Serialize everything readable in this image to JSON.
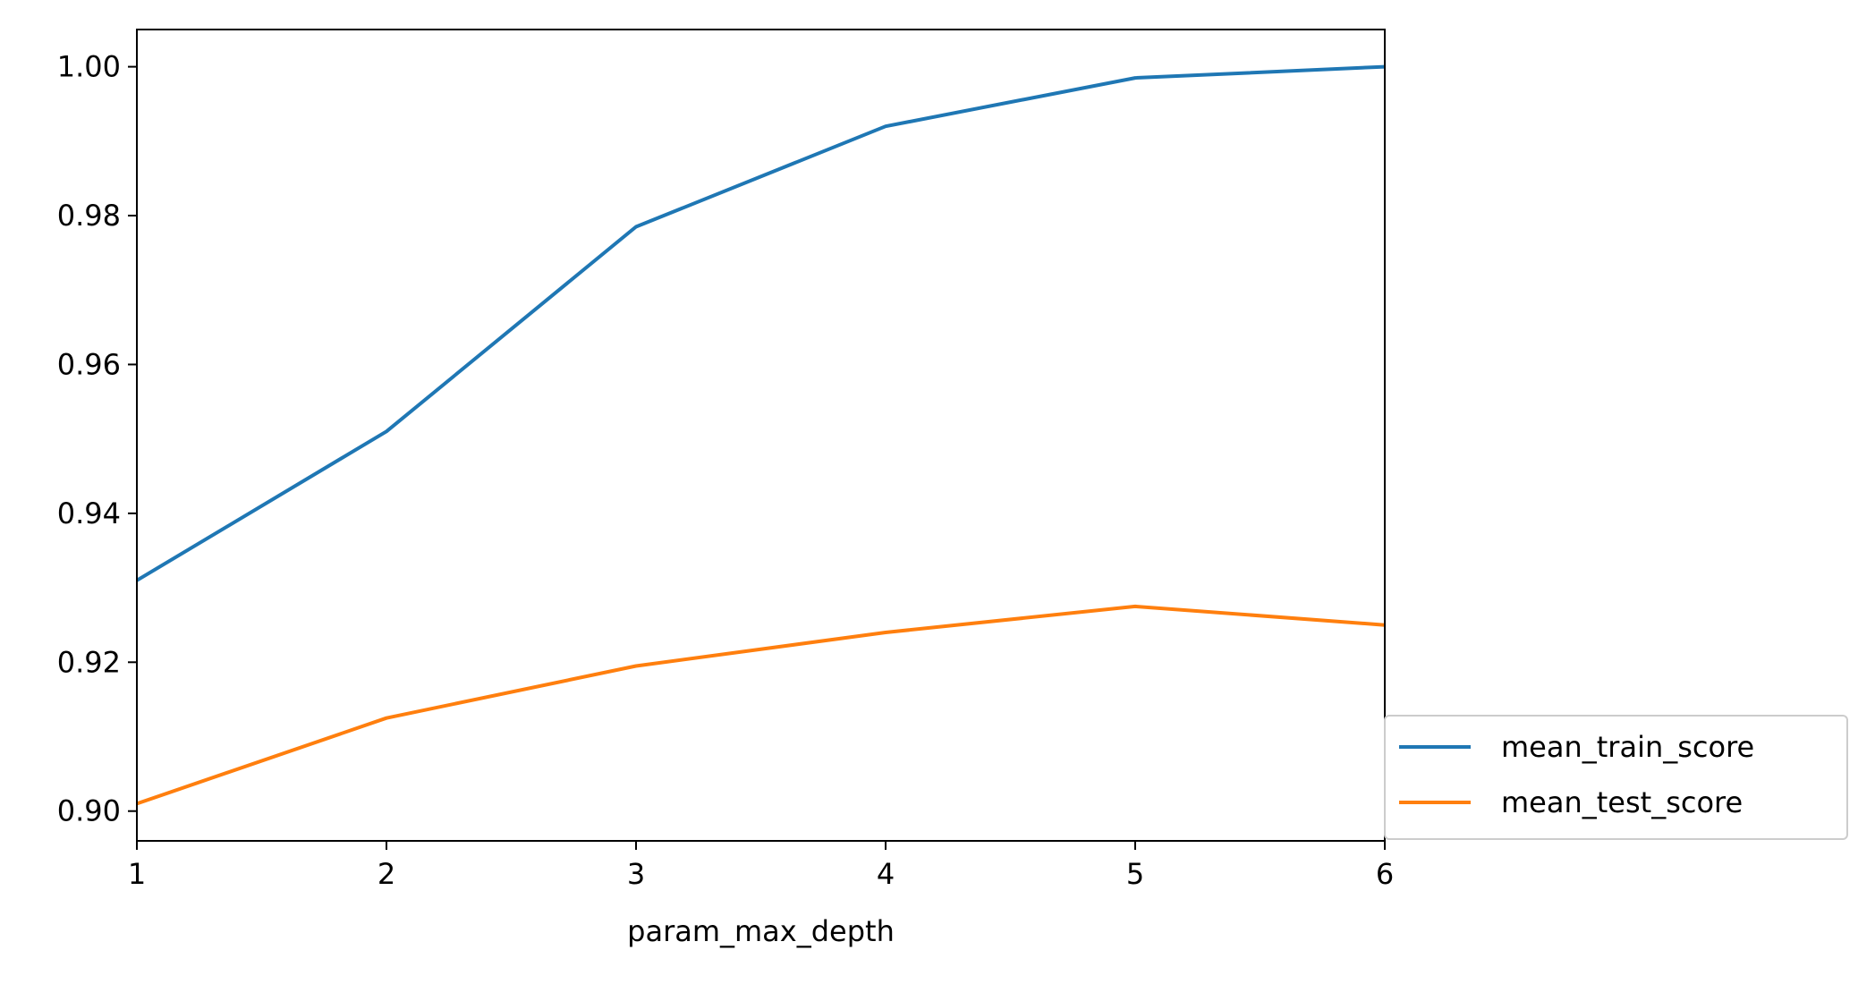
{
  "chart_data": {
    "type": "line",
    "title": "",
    "xlabel": "param_max_depth",
    "ylabel": "",
    "x": [
      1,
      2,
      3,
      4,
      5,
      6
    ],
    "xlim": [
      1,
      6
    ],
    "ylim": [
      0.896,
      1.005
    ],
    "xticks": [
      "1",
      "2",
      "3",
      "4",
      "5",
      "6"
    ],
    "yticks": [
      {
        "value": 0.9,
        "label": "0.90"
      },
      {
        "value": 0.92,
        "label": "0.92"
      },
      {
        "value": 0.94,
        "label": "0.94"
      },
      {
        "value": 0.96,
        "label": "0.96"
      },
      {
        "value": 0.98,
        "label": "0.98"
      },
      {
        "value": 1.0,
        "label": "1.00"
      }
    ],
    "grid": false,
    "legend_position": "lower-right, outside axes",
    "series": [
      {
        "name": "mean_train_score",
        "color": "#1f77b4",
        "values": [
          0.931,
          0.951,
          0.9785,
          0.992,
          0.9985,
          1.0
        ]
      },
      {
        "name": "mean_test_score",
        "color": "#ff7f0e",
        "values": [
          0.901,
          0.9125,
          0.9195,
          0.924,
          0.9275,
          0.925
        ]
      }
    ]
  }
}
